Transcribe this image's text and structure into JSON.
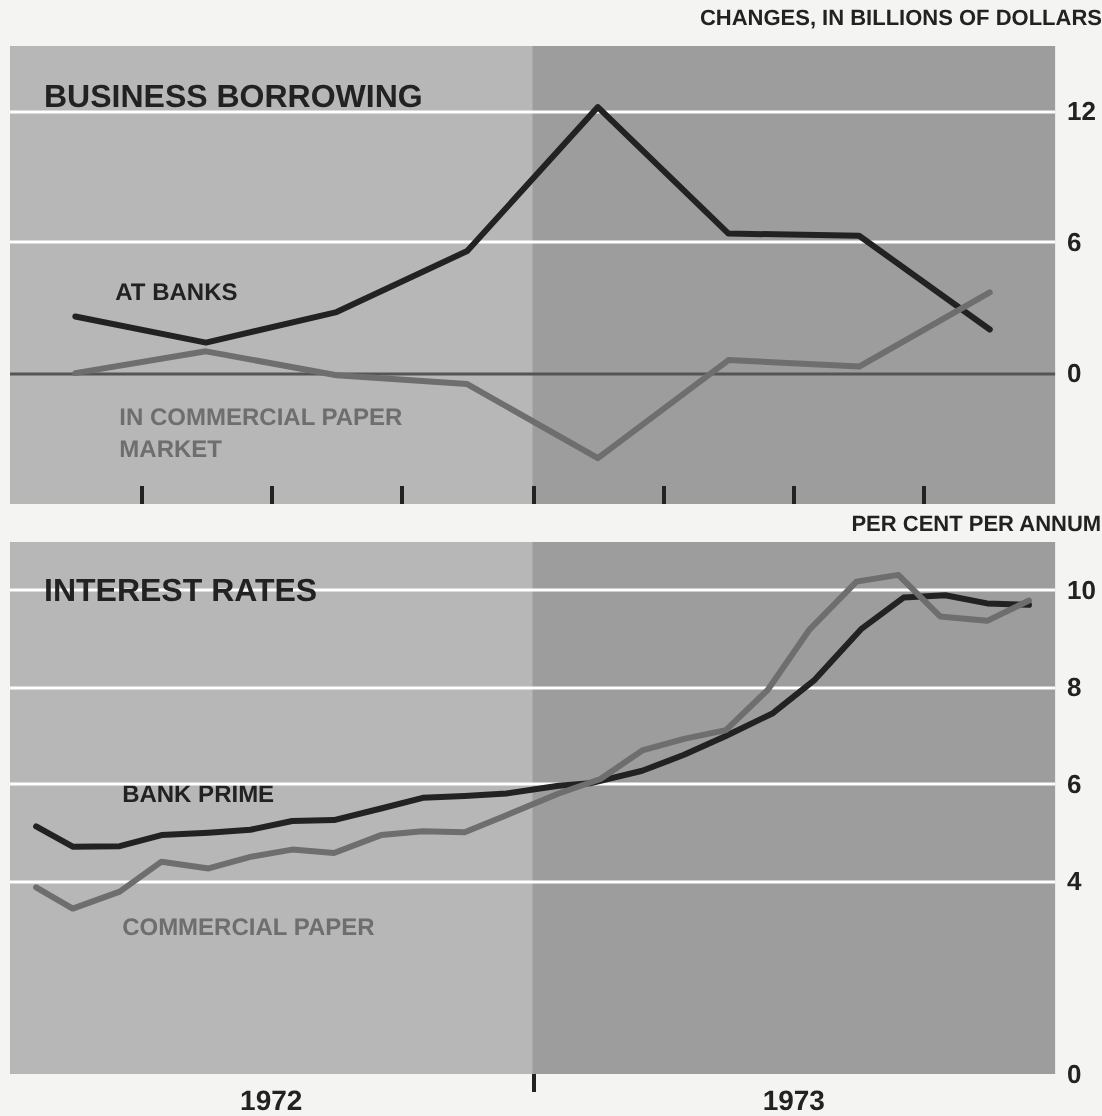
{
  "chart_data": [
    {
      "type": "line",
      "title": "BUSINESS BORROWING",
      "ylabel": "CHANGES, IN BILLIONS OF DOLLARS",
      "x": [
        1972.125,
        1972.375,
        1972.625,
        1972.875,
        1973.125,
        1973.375,
        1973.625,
        1973.875
      ],
      "series": [
        {
          "name": "AT BANKS",
          "color": "#222222",
          "values": [
            2.6,
            1.4,
            2.8,
            5.6,
            12.2,
            6.4,
            6.3,
            2.0
          ]
        },
        {
          "name": "IN COMMERCIAL PAPER MARKET",
          "color": "#6e6e6e",
          "values": [
            0.0,
            1.0,
            -0.1,
            -0.5,
            -3.9,
            0.6,
            0.3,
            3.7
          ]
        }
      ],
      "xlim": [
        1972,
        1974
      ],
      "xticks": [
        {
          "value": 1972.25,
          "label": null
        },
        {
          "value": 1972.5,
          "label": null
        },
        {
          "value": 1972.75,
          "label": null
        },
        {
          "value": 1973,
          "label": null
        },
        {
          "value": 1973.25,
          "label": null
        },
        {
          "value": 1973.5,
          "label": null
        },
        {
          "value": 1973.75,
          "label": null
        }
      ],
      "ylim": [
        -6,
        15
      ],
      "yticks": [
        0,
        6,
        12
      ],
      "tick_labels": "y",
      "bands": [
        {
          "axis": "x",
          "from": 1973,
          "to": 1974,
          "color": "#9d9d9d"
        }
      ],
      "ref_lines": [
        {
          "axis": "y",
          "value": 0,
          "color": "#555555"
        }
      ],
      "grid": "y",
      "legend": false,
      "marker": "none",
      "line_style": "solid"
    },
    {
      "type": "line",
      "title": "INTEREST RATES",
      "ylabel": "PER CENT PER ANNUM",
      "series": [
        {
          "name": "BANK PRIME",
          "color": "#222222",
          "x": [
            1972.05,
            1972.12,
            1972.21,
            1972.29,
            1972.38,
            1972.46,
            1972.54,
            1972.62,
            1972.71,
            1972.79,
            1972.87,
            1972.95,
            1973.05,
            1973.11,
            1973.21,
            1973.29,
            1973.37,
            1973.46,
            1973.54,
            1973.63,
            1973.71,
            1973.79,
            1973.87,
            1973.95
          ],
          "values": [
            5.12,
            4.7,
            4.71,
            4.94,
            4.99,
            5.05,
            5.23,
            5.25,
            5.49,
            5.71,
            5.75,
            5.8,
            5.96,
            6.01,
            6.27,
            6.6,
            6.99,
            7.46,
            8.15,
            9.21,
            9.85,
            9.9,
            9.73,
            9.7
          ]
        },
        {
          "name": "COMMERCIAL PAPER",
          "color": "#6e6e6e",
          "x": [
            1972.05,
            1972.12,
            1972.21,
            1972.29,
            1972.38,
            1972.46,
            1972.54,
            1972.62,
            1972.71,
            1972.79,
            1972.87,
            1972.95,
            1973.05,
            1973.13,
            1973.21,
            1973.29,
            1973.37,
            1973.45,
            1973.53,
            1973.62,
            1973.7,
            1973.78,
            1973.87,
            1973.95
          ],
          "values": [
            3.86,
            3.42,
            3.77,
            4.39,
            4.25,
            4.49,
            4.64,
            4.57,
            4.94,
            5.02,
            5.0,
            5.35,
            5.8,
            6.1,
            6.69,
            6.93,
            7.11,
            7.94,
            9.19,
            10.18,
            10.32,
            9.46,
            9.37,
            9.79
          ]
        }
      ],
      "xlim": [
        1972,
        1974
      ],
      "xticks": [
        {
          "value": 1972.5,
          "label": "1972"
        },
        {
          "value": 1973,
          "label": null
        },
        {
          "value": 1973.5,
          "label": "1973"
        }
      ],
      "ylim": [
        0,
        11
      ],
      "yticks": [
        0,
        4,
        6,
        8,
        10
      ],
      "bands": [
        {
          "axis": "x",
          "from": 1973,
          "to": 1974,
          "color": "#9d9d9d"
        }
      ],
      "grid": "y",
      "legend": false,
      "marker": "none",
      "line_style": "solid"
    }
  ]
}
